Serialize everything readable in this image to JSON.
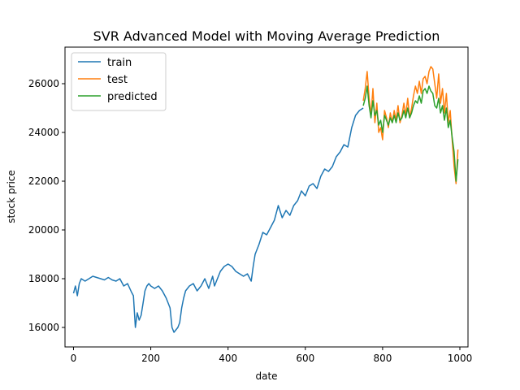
{
  "chart_data": {
    "type": "line",
    "title": "SVR Advanced Model with Moving Average Prediction",
    "xlabel": "date",
    "ylabel": "stock price",
    "xlim": [
      -22,
      1021
    ],
    "ylim": [
      15200,
      27500
    ],
    "xticks": [
      0,
      200,
      400,
      600,
      800,
      1000
    ],
    "yticks": [
      16000,
      18000,
      20000,
      22000,
      24000,
      26000
    ],
    "grid": false,
    "legend_position": "top-left",
    "series": [
      {
        "name": "train",
        "color": "#1f77b4",
        "x": [
          0,
          5,
          10,
          15,
          20,
          30,
          40,
          50,
          60,
          70,
          80,
          90,
          100,
          110,
          120,
          130,
          140,
          150,
          155,
          160,
          165,
          170,
          175,
          180,
          185,
          190,
          195,
          200,
          210,
          220,
          230,
          240,
          250,
          255,
          260,
          265,
          270,
          275,
          280,
          285,
          290,
          300,
          310,
          320,
          330,
          340,
          350,
          360,
          365,
          370,
          380,
          390,
          400,
          410,
          420,
          430,
          440,
          450,
          460,
          465,
          470,
          480,
          490,
          500,
          510,
          520,
          530,
          540,
          550,
          560,
          570,
          580,
          590,
          600,
          610,
          620,
          630,
          640,
          650,
          660,
          670,
          680,
          690,
          700,
          710,
          720,
          730,
          740,
          750
        ],
        "values": [
          17400,
          17700,
          17300,
          17800,
          18000,
          17900,
          18000,
          18100,
          18050,
          18000,
          17950,
          18050,
          17950,
          17900,
          18000,
          17700,
          17800,
          17450,
          17300,
          16000,
          16600,
          16300,
          16500,
          17000,
          17500,
          17700,
          17800,
          17700,
          17600,
          17700,
          17500,
          17200,
          16800,
          16000,
          15800,
          15900,
          16000,
          16200,
          16800,
          17200,
          17500,
          17700,
          17800,
          17500,
          17700,
          18000,
          17600,
          18100,
          17700,
          17900,
          18300,
          18500,
          18600,
          18500,
          18300,
          18200,
          18100,
          18200,
          17900,
          18500,
          19000,
          19400,
          19900,
          19800,
          20100,
          20400,
          21000,
          20500,
          20800,
          20600,
          21000,
          21200,
          21600,
          21400,
          21800,
          21900,
          21700,
          22200,
          22500,
          22400,
          22600,
          23000,
          23200,
          23500,
          23400,
          24200,
          24700,
          24900,
          25000
        ]
      },
      {
        "name": "test",
        "color": "#ff7f0e",
        "x": [
          750,
          755,
          760,
          765,
          770,
          775,
          780,
          785,
          790,
          795,
          800,
          805,
          810,
          815,
          820,
          825,
          830,
          835,
          840,
          845,
          850,
          855,
          860,
          865,
          870,
          875,
          880,
          885,
          890,
          895,
          900,
          905,
          910,
          915,
          920,
          925,
          930,
          935,
          940,
          945,
          950,
          955,
          960,
          965,
          970,
          975,
          980,
          985,
          990,
          995
        ],
        "values": [
          25300,
          25800,
          26500,
          25400,
          24700,
          25800,
          24400,
          25200,
          24000,
          24200,
          23700,
          24900,
          24600,
          24200,
          24800,
          24400,
          24900,
          24500,
          25100,
          24400,
          24700,
          25200,
          24700,
          25400,
          24600,
          25000,
          25500,
          25900,
          25600,
          26100,
          25600,
          26200,
          26300,
          26000,
          26500,
          26700,
          26600,
          26000,
          25400,
          26400,
          25200,
          25800,
          24800,
          25600,
          24400,
          24900,
          23700,
          22600,
          21900,
          23300
        ]
      },
      {
        "name": "predicted",
        "color": "#2ca02c",
        "x": [
          750,
          755,
          760,
          765,
          770,
          775,
          780,
          785,
          790,
          795,
          800,
          805,
          810,
          815,
          820,
          825,
          830,
          835,
          840,
          845,
          850,
          855,
          860,
          865,
          870,
          875,
          880,
          885,
          890,
          895,
          900,
          905,
          910,
          915,
          920,
          925,
          930,
          935,
          940,
          945,
          950,
          955,
          960,
          965,
          970,
          975,
          980,
          985,
          990,
          995
        ],
        "values": [
          25100,
          25400,
          25900,
          25100,
          24600,
          25300,
          24700,
          24900,
          24300,
          24500,
          24000,
          24700,
          24500,
          24300,
          24600,
          24400,
          24700,
          24400,
          24800,
          24500,
          24600,
          24900,
          24600,
          25000,
          24600,
          24800,
          25100,
          25300,
          25200,
          25500,
          25200,
          25700,
          25800,
          25600,
          25900,
          25700,
          25600,
          25100,
          25000,
          25400,
          24800,
          25100,
          24500,
          25000,
          24200,
          24500,
          23800,
          23200,
          22000,
          22900
        ]
      }
    ]
  }
}
